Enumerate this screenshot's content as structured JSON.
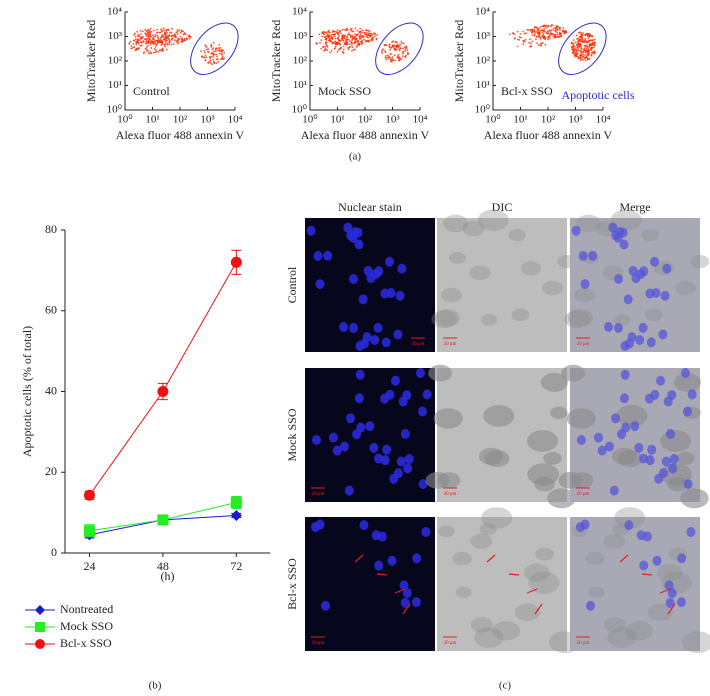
{
  "panel_labels": [
    "(a)",
    "(b)",
    "(c)"
  ],
  "chart_data": [
    {
      "type": "flow-density",
      "label": "Control",
      "xlabel": "Alexa fluor 488 annexin V",
      "ylabel": "MitoTracker Red",
      "log_scale": true,
      "xlim": [
        1,
        10000
      ],
      "ylim": [
        1,
        10000
      ],
      "xticks": [
        {
          "value": 1,
          "label": "10⁰"
        },
        {
          "value": 10,
          "label": "10¹"
        },
        {
          "value": 100,
          "label": "10²"
        },
        {
          "value": 1000,
          "label": "10³"
        },
        {
          "value": 10000,
          "label": "10⁴"
        }
      ],
      "yticks": [
        {
          "value": 1,
          "label": "10⁰"
        },
        {
          "value": 10,
          "label": "10¹"
        },
        {
          "value": 100,
          "label": "10²"
        },
        {
          "value": 1000,
          "label": "10³"
        },
        {
          "value": 10000,
          "label": "10⁴"
        }
      ],
      "color": "#ff2a00",
      "gate_color": "#2a2ad0"
    },
    {
      "type": "flow-density",
      "label": "Mock SSO",
      "xlabel": "Alexa fluor 488 annexin V",
      "ylabel": "MitoTracker Red",
      "log_scale": true,
      "xlim": [
        1,
        10000
      ],
      "ylim": [
        1,
        10000
      ],
      "xticks": [
        {
          "value": 1,
          "label": "10⁰"
        },
        {
          "value": 10,
          "label": "10¹"
        },
        {
          "value": 100,
          "label": "10²"
        },
        {
          "value": 1000,
          "label": "10³"
        },
        {
          "value": 10000,
          "label": "10⁴"
        }
      ],
      "yticks": [
        {
          "value": 1,
          "label": "10⁰"
        },
        {
          "value": 10,
          "label": "10¹"
        },
        {
          "value": 100,
          "label": "10²"
        },
        {
          "value": 1000,
          "label": "10³"
        },
        {
          "value": 10000,
          "label": "10⁴"
        }
      ],
      "color": "#ff2a00",
      "gate_color": "#2a2ad0"
    },
    {
      "type": "flow-density",
      "label": "Bcl-x SSO",
      "gate_label": "Apoptotic cells",
      "xlabel": "Alexa fluor 488 annexin V",
      "ylabel": "MitoTracker Red",
      "log_scale": true,
      "xlim": [
        1,
        10000
      ],
      "ylim": [
        1,
        10000
      ],
      "xticks": [
        {
          "value": 1,
          "label": "10⁰"
        },
        {
          "value": 10,
          "label": "10¹"
        },
        {
          "value": 100,
          "label": "10²"
        },
        {
          "value": 1000,
          "label": "10³"
        },
        {
          "value": 10000,
          "label": "10⁴"
        }
      ],
      "yticks": [
        {
          "value": 1,
          "label": "10⁰"
        },
        {
          "value": 10,
          "label": "10¹"
        },
        {
          "value": 100,
          "label": "10²"
        },
        {
          "value": 1000,
          "label": "10³"
        },
        {
          "value": 10000,
          "label": "10⁴"
        }
      ],
      "color": "#ff2a00",
      "gate_color": "#2a2ad0"
    },
    {
      "type": "line",
      "xlabel": "(h)",
      "ylabel": "Apoptotic cells (% of total)",
      "x": [
        24,
        48,
        72
      ],
      "xlim": [
        16,
        83
      ],
      "xticks": [
        24,
        48,
        72
      ],
      "ylim": [
        0,
        80
      ],
      "yticks": [
        0,
        20,
        40,
        60,
        80
      ],
      "series": [
        {
          "name": "Nontreated",
          "color": "#1a1ad0",
          "marker": "diamond",
          "values": [
            4.5,
            8.2,
            9.3
          ],
          "errors": [
            0.8,
            0.5,
            0.5
          ]
        },
        {
          "name": "Mock SSO",
          "color": "#22ee22",
          "marker": "square",
          "values": [
            5.5,
            8.2,
            12.5
          ],
          "errors": [
            1.5,
            0.8,
            1.5
          ]
        },
        {
          "name": "Bcl-x SSO",
          "color": "#ee1111",
          "marker": "circle",
          "values": [
            14.3,
            40,
            72
          ],
          "errors": [
            1,
            2,
            3
          ]
        }
      ]
    }
  ],
  "micrographs": {
    "columns": [
      "Nuclear stain",
      "DIC",
      "Merge"
    ],
    "rows": [
      "Control",
      "Mock SSO",
      "Bcl-x SSO"
    ],
    "scale_bar": "20 μm"
  }
}
